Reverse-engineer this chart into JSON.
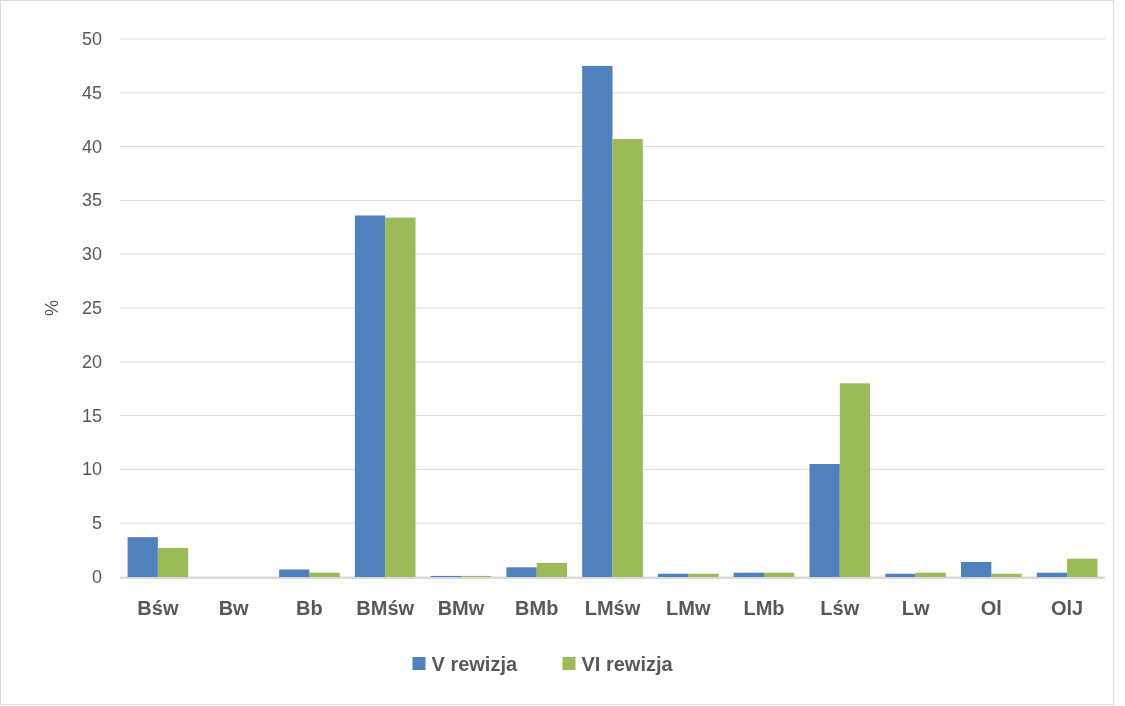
{
  "chart_data": {
    "type": "bar",
    "ylabel": "%",
    "categories": [
      "Bśw",
      "Bw",
      "Bb",
      "BMśw",
      "BMw",
      "BMb",
      "LMśw",
      "LMw",
      "LMb",
      "Lśw",
      "Lw",
      "Ol",
      "OlJ"
    ],
    "series": [
      {
        "name": "V rewizja",
        "color": "#4f81bd",
        "values": [
          3.7,
          0,
          0.7,
          33.6,
          0.1,
          0.9,
          47.5,
          0.3,
          0.4,
          10.5,
          0.3,
          1.4,
          0.4
        ]
      },
      {
        "name": "VI rewizja",
        "color": "#9bbb59",
        "values": [
          2.7,
          0,
          0.4,
          33.4,
          0.1,
          1.3,
          40.7,
          0.3,
          0.4,
          18.0,
          0.4,
          0.3,
          1.7
        ]
      }
    ],
    "ylim": [
      0,
      50
    ],
    "yticks": [
      0,
      5,
      10,
      15,
      20,
      25,
      30,
      35,
      40,
      45,
      50
    ],
    "grid": "y",
    "legend": "bottom"
  }
}
